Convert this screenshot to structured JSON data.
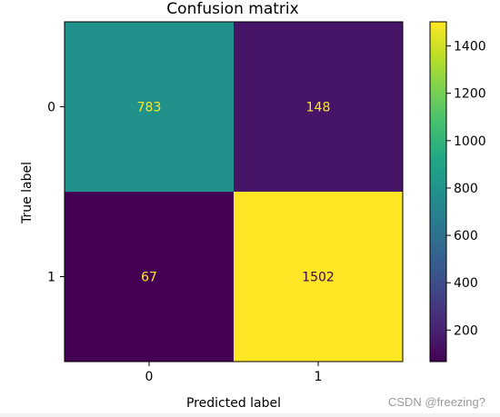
{
  "chart_data": {
    "type": "heatmap",
    "title": "Confusion matrix",
    "xlabel": "Predicted label",
    "ylabel": "True label",
    "x_ticks": [
      "0",
      "1"
    ],
    "y_ticks": [
      "0",
      "1"
    ],
    "matrix": [
      [
        783,
        148
      ],
      [
        67,
        1502
      ]
    ],
    "colormap": "viridis",
    "colorbar": {
      "range": [
        67,
        1502
      ],
      "ticks": [
        200,
        400,
        600,
        800,
        1000,
        1200,
        1400
      ],
      "tick_labels": [
        "200",
        "400",
        "600",
        "800",
        "1000",
        "1200",
        "1400"
      ]
    },
    "text_colors": {
      "on_dark": "#fde725",
      "on_light": "#440154"
    },
    "grid": false
  },
  "watermark": "CSDN @freezing?"
}
